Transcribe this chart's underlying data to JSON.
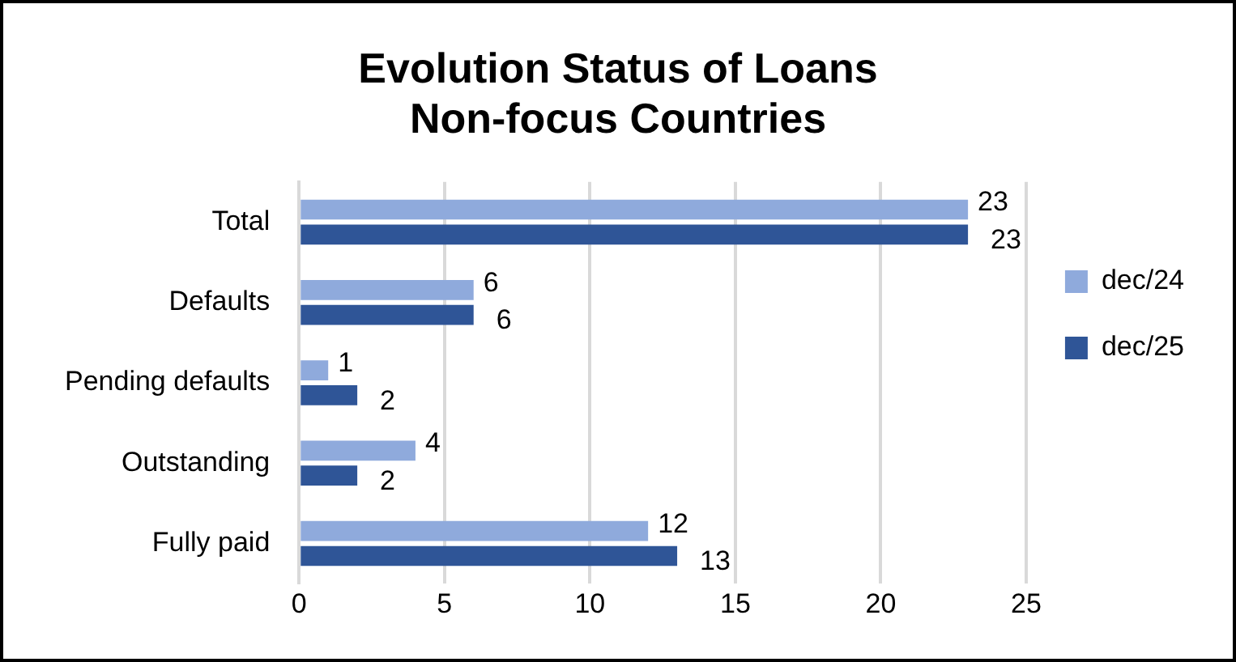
{
  "chart_data": {
    "type": "bar",
    "orientation": "horizontal",
    "title": "Evolution Status of Loans\nNon-focus Countries",
    "categories": [
      "Total",
      "Defaults",
      "Pending defaults",
      "Outstanding",
      "Fully paid"
    ],
    "series": [
      {
        "name": "dec/24",
        "color": "#8faadc",
        "values": [
          23,
          6,
          1,
          4,
          12
        ]
      },
      {
        "name": "dec/25",
        "color": "#2f5597",
        "values": [
          23,
          6,
          2,
          2,
          13
        ]
      }
    ],
    "xlim": [
      0,
      25
    ],
    "xticks": [
      0,
      5,
      10,
      15,
      20,
      25
    ],
    "grid": "x",
    "legend": "right",
    "data_labels": true
  }
}
